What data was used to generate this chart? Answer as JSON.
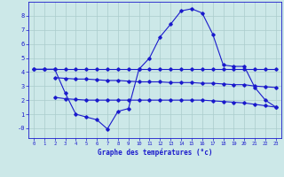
{
  "xlabel": "Graphe des températures (°c)",
  "bg_color": "#cce8e8",
  "grid_color": "#aacccc",
  "line_color": "#1a1acc",
  "xlim": [
    -0.5,
    23.5
  ],
  "ylim": [
    -0.7,
    9.0
  ],
  "yticks": [
    0,
    1,
    2,
    3,
    4,
    5,
    6,
    7,
    8
  ],
  "ytick_labels": [
    "-0",
    "1",
    "2",
    "3",
    "4",
    "5",
    "6",
    "7",
    "8"
  ],
  "curve_x": [
    0,
    1,
    2,
    3,
    4,
    5,
    6,
    7,
    8,
    9,
    10,
    11,
    12,
    13,
    14,
    15,
    16,
    17,
    18,
    19,
    20,
    21,
    22,
    23
  ],
  "curve_y": [
    4.2,
    4.2,
    4.2,
    2.5,
    1.0,
    0.8,
    0.6,
    -0.05,
    1.2,
    1.4,
    4.2,
    5.0,
    6.5,
    7.4,
    8.35,
    8.5,
    8.2,
    6.7,
    4.5,
    4.4,
    4.4,
    2.9,
    2.0,
    1.5
  ],
  "flat1_x": [
    0,
    1,
    2,
    3,
    4,
    5,
    6,
    7,
    8,
    9,
    10,
    11,
    12,
    13,
    14,
    15,
    16,
    17,
    18,
    19,
    20,
    21,
    22,
    23
  ],
  "flat1_y": [
    4.2,
    4.2,
    4.2,
    4.2,
    4.2,
    4.2,
    4.2,
    4.2,
    4.2,
    4.2,
    4.2,
    4.2,
    4.2,
    4.2,
    4.2,
    4.2,
    4.2,
    4.2,
    4.2,
    4.2,
    4.2,
    4.2,
    4.2,
    4.2
  ],
  "flat2_x": [
    2,
    3,
    4,
    5,
    6,
    7,
    8,
    9,
    10,
    11,
    12,
    13,
    14,
    15,
    16,
    17,
    18,
    19,
    20,
    21,
    22,
    23
  ],
  "flat2_y": [
    3.6,
    3.55,
    3.5,
    3.5,
    3.45,
    3.4,
    3.4,
    3.35,
    3.3,
    3.3,
    3.3,
    3.25,
    3.25,
    3.25,
    3.2,
    3.2,
    3.15,
    3.1,
    3.1,
    3.0,
    2.95,
    2.9
  ],
  "flat3_x": [
    2,
    3,
    4,
    5,
    6,
    7,
    8,
    9,
    10,
    11,
    12,
    13,
    14,
    15,
    16,
    17,
    18,
    19,
    20,
    21,
    22,
    23
  ],
  "flat3_y": [
    2.2,
    2.1,
    2.05,
    2.0,
    2.0,
    2.0,
    2.0,
    2.0,
    2.0,
    2.0,
    2.0,
    2.0,
    2.0,
    2.0,
    2.0,
    1.95,
    1.9,
    1.85,
    1.8,
    1.7,
    1.6,
    1.5
  ]
}
